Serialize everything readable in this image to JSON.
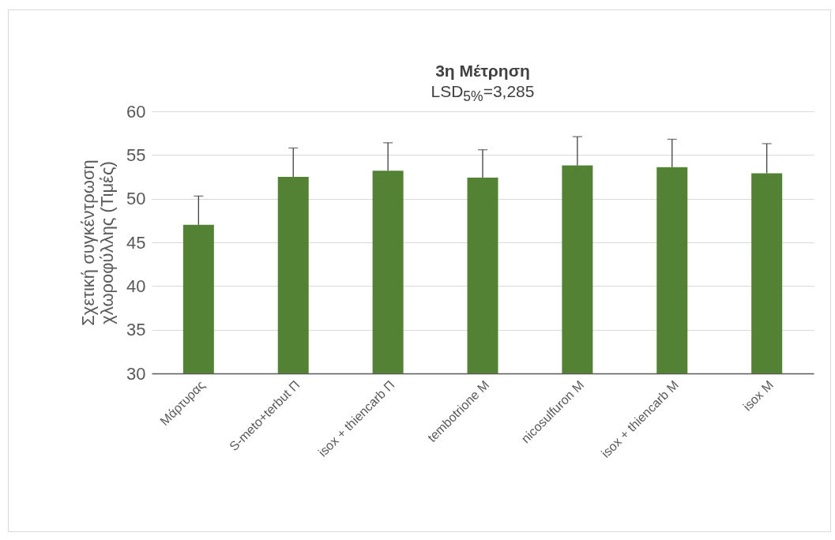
{
  "chart_data": {
    "type": "bar",
    "title": "3η Μέτρηση",
    "subtitle": "LSD$_{5%}$=3,285",
    "ylabel": "Σχετική συγκέντρωση\nχλωροφύλλης (Τιμές)",
    "categories": [
      "Μάρτυρας",
      "S-meto+terbut Π",
      "isox + thiencarb Π",
      "tembotrione M",
      "nicosulfuron M",
      "isox + thiencarb M",
      "isox M"
    ],
    "values": [
      47.0,
      52.5,
      53.2,
      52.4,
      53.8,
      53.6,
      52.9
    ],
    "errors": [
      [
        47.0,
        50.3
      ],
      [
        52.5,
        55.8
      ],
      [
        53.2,
        56.4
      ],
      [
        52.4,
        55.6
      ],
      [
        53.8,
        57.1
      ],
      [
        53.6,
        56.8
      ],
      [
        52.9,
        56.3
      ]
    ],
    "color": "#548235",
    "ylim": [
      30,
      60
    ],
    "yticks": [
      30,
      35,
      40,
      45,
      50,
      55,
      60
    ],
    "grid": "y"
  }
}
